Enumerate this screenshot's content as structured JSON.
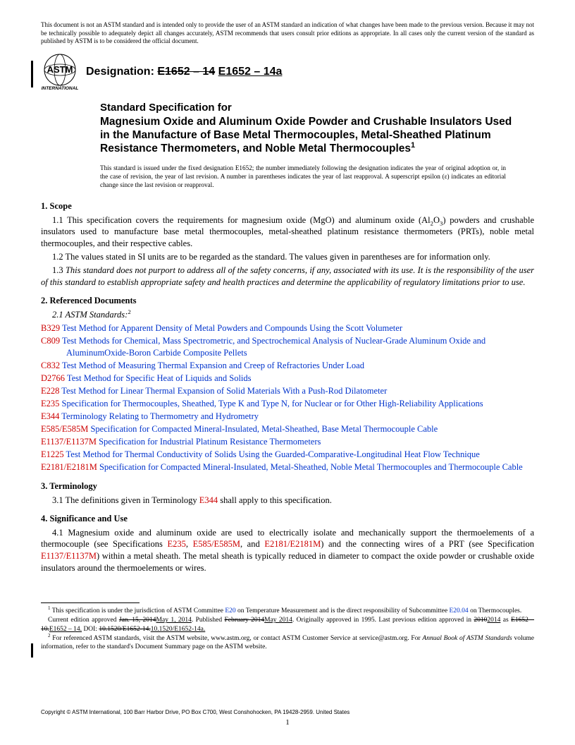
{
  "disclaimer": "This document is not an ASTM standard and is intended only to provide the user of an ASTM standard an indication of what changes have been made to the previous version. Because it may not be technically possible to adequately depict all changes accurately, ASTM recommends that users consult prior editions as appropriate. In all cases only the current version of the standard as published by ASTM is to be considered the official document.",
  "designation_label": "Designation:",
  "designation_old": "E1652 – 14",
  "designation_new": "E1652 – 14a",
  "title_pre": "Standard Specification for",
  "title_main": "Magnesium Oxide and Aluminum Oxide Powder and Crushable Insulators Used in the Manufacture of Base Metal Thermocouples, Metal-Sheathed Platinum Resistance Thermometers, and Noble Metal Thermocouples",
  "issued_note": "This standard is issued under the fixed designation E1652; the number immediately following the designation indicates the year of original adoption or, in the case of revision, the year of last revision. A number in parentheses indicates the year of last reapproval. A superscript epsilon (ε) indicates an editorial change since the last revision or reapproval.",
  "sections": {
    "scope_head": "1. Scope",
    "s1_1_pre": "1.1 This specification covers the requirements for magnesium oxide (MgO) and aluminum oxide (Al",
    "s1_1_post": ") powders and crushable insulators used to manufacture base metal thermocouples, metal-sheathed platinum resistance thermometers (PRTs), noble metal thermocouples, and their respective cables.",
    "s1_2": "1.2 The values stated in SI units are to be regarded as the standard. The values given in parentheses are for information only.",
    "s1_3": "1.3 This standard does not purport to address all of the safety concerns, if any, associated with its use. It is the responsibility of the user of this standard to establish appropriate safety and health practices and determine the applicability of regulatory limitations prior to use.",
    "ref_head": "2. Referenced Documents",
    "ref_sub": "2.1 ASTM Standards:",
    "term_head": "3. Terminology",
    "term_p1a": "3.1 The definitions given in Terminology ",
    "term_p1b": " shall apply to this specification.",
    "term_link": "E344",
    "sig_head": "4. Significance and Use",
    "sig_p_a": "4.1 Magnesium oxide and aluminum oxide are used to electrically isolate and mechanically support the thermoelements of a thermocouple (see Specifications ",
    "sig_l1": "E235",
    "sig_sep1": ", ",
    "sig_l2": "E585/E585M",
    "sig_sep2": ", and ",
    "sig_l3": "E2181/E2181M",
    "sig_mid": ") and the connecting wires of a PRT (see Specification ",
    "sig_l4": "E1137/E1137M",
    "sig_end": ") within a metal sheath. The metal sheath is typically reduced in diameter to compact the oxide powder or crushable oxide insulators around the thermoelements or wires."
  },
  "refs": [
    {
      "code": "B329",
      "title": "Test Method for Apparent Density of Metal Powders and Compounds Using the Scott Volumeter"
    },
    {
      "code": "C809",
      "title": "Test Methods for Chemical, Mass Spectrometric, and Spectrochemical Analysis of Nuclear-Grade Aluminum Oxide and AluminumOxide-Boron Carbide Composite Pellets"
    },
    {
      "code": "C832",
      "title": "Test Method of Measuring Thermal Expansion and Creep of Refractories Under Load"
    },
    {
      "code": "D2766",
      "title": "Test Method for Specific Heat of Liquids and Solids"
    },
    {
      "code": "E228",
      "title": "Test Method for Linear Thermal Expansion of Solid Materials With a Push-Rod Dilatometer"
    },
    {
      "code": "E235",
      "title": "Specification for Thermocouples, Sheathed, Type K and Type N, for Nuclear or for Other High-Reliability Applications"
    },
    {
      "code": "E344",
      "title": "Terminology Relating to Thermometry and Hydrometry"
    },
    {
      "code": "E585/E585M",
      "title": "Specification for Compacted Mineral-Insulated, Metal-Sheathed, Base Metal Thermocouple Cable"
    },
    {
      "code": "E1137/E1137M",
      "title": "Specification for Industrial Platinum Resistance Thermometers"
    },
    {
      "code": "E1225",
      "title": "Test Method for Thermal Conductivity of Solids Using the Guarded-Comparative-Longitudinal Heat Flow Technique"
    },
    {
      "code": "E2181/E2181M",
      "title": "Specification for Compacted Mineral-Insulated, Metal-Sheathed, Noble Metal Thermocouples and Thermocouple Cable"
    }
  ],
  "fn1_a": " This specification is under the jurisdiction of ASTM Committee ",
  "fn1_l1": "E20",
  "fn1_b": " on Temperature Measurement and is the direct responsibility of Subcommittee ",
  "fn1_l2": "E20.04",
  "fn1_c": " on Thermocouples.",
  "fn1_line2_a": "Current edition approved ",
  "fn1_old_date": "Jan. 15, 2014",
  "fn1_new_date": "May 1, 2014",
  "fn1_line2_b": ". Published ",
  "fn1_old_pub": "February 2014",
  "fn1_new_pub": "May 2014",
  "fn1_line2_c": ". Originally approved in 1995. Last previous edition approved in ",
  "fn1_old_yr": "2010",
  "fn1_new_yr": "2014",
  "fn1_line2_d": " as ",
  "fn1_old_ed": "E1652 – 10.",
  "fn1_new_ed": "E1652 – 14.",
  "fn1_line2_e": " DOI: ",
  "fn1_old_doi": "10.1520/E1652-14.",
  "fn1_new_doi": "10.1520/E1652-14a.",
  "fn2_a": " For referenced ASTM standards, visit the ASTM website, www.astm.org, or contact ASTM Customer Service at service@astm.org. For ",
  "fn2_i": "Annual Book of ASTM Standards",
  "fn2_b": " volume information, refer to the standard's Document Summary page on the ASTM website.",
  "copyright": "Copyright © ASTM International, 100 Barr Harbor Drive, PO Box C700, West Conshohocken, PA 19428-2959. United States",
  "pagenum": "1"
}
